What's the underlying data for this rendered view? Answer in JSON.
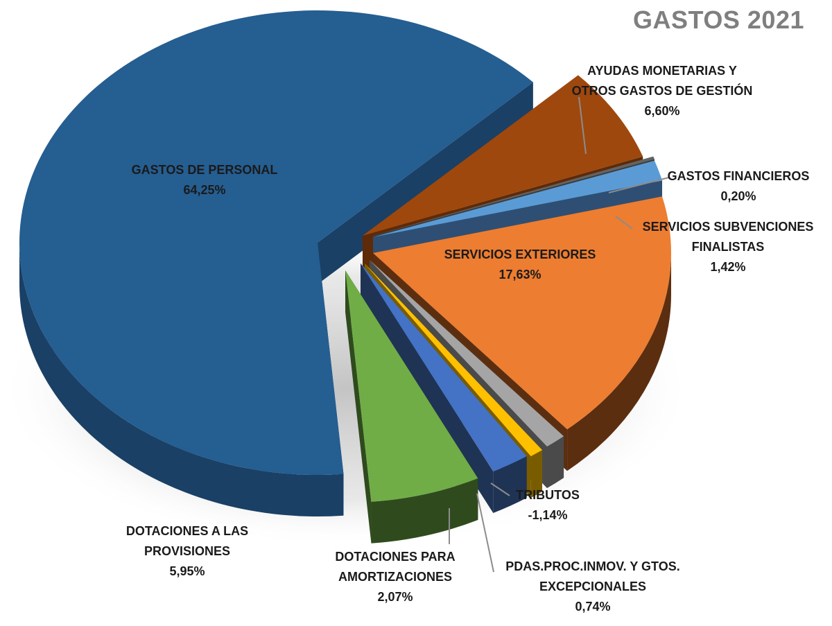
{
  "chart_data": {
    "type": "pie",
    "title": "GASTOS 2021",
    "style": "3d-exploded",
    "slices": [
      {
        "name_lines": [
          "GASTOS DE PERSONAL"
        ],
        "value": 64.25,
        "display": "64,25%",
        "color": "#255E91",
        "side_color": "#1A4066"
      },
      {
        "name_lines": [
          "AYUDAS MONETARIAS Y",
          "OTROS GASTOS DE GESTIÓN"
        ],
        "value": 6.6,
        "display": "6,60%",
        "color": "#9E480E",
        "side_color": "#5E2A08"
      },
      {
        "name_lines": [
          "GASTOS FINANCIEROS"
        ],
        "value": 0.2,
        "display": "0,20%",
        "color": "#636363",
        "side_color": "#3C3C3C"
      },
      {
        "name_lines": [
          "SERVICIOS SUBVENCIONES",
          "FINALISTAS"
        ],
        "value": 1.42,
        "display": "1,42%",
        "color": "#5B9BD5",
        "side_color": "#2E4F73"
      },
      {
        "name_lines": [
          "SERVICIOS EXTERIORES"
        ],
        "value": 17.63,
        "display": "17,63%",
        "color": "#ED7D31",
        "side_color": "#5C2E10"
      },
      {
        "name_lines": [
          "TRIBUTOS"
        ],
        "value": -1.14,
        "display": "-1,14%",
        "color": "#A5A5A5",
        "side_color": "#4A4A4A"
      },
      {
        "name_lines": [
          "PDAS.PROC.INMOV. Y GTOS.",
          "EXCEPCIONALES"
        ],
        "value": 0.74,
        "display": "0,74%",
        "color": "#FFC000",
        "side_color": "#7A5C00"
      },
      {
        "name_lines": [
          "DOTACIONES PARA",
          "AMORTIZACIONES"
        ],
        "value": 2.07,
        "display": "2,07%",
        "color": "#4472C4",
        "side_color": "#1F3354"
      },
      {
        "name_lines": [
          "DOTACIONES A LAS",
          "PROVISIONES"
        ],
        "value": 5.95,
        "display": "5,95%",
        "color": "#70AD47",
        "side_color": "#2F4B1E"
      }
    ]
  }
}
